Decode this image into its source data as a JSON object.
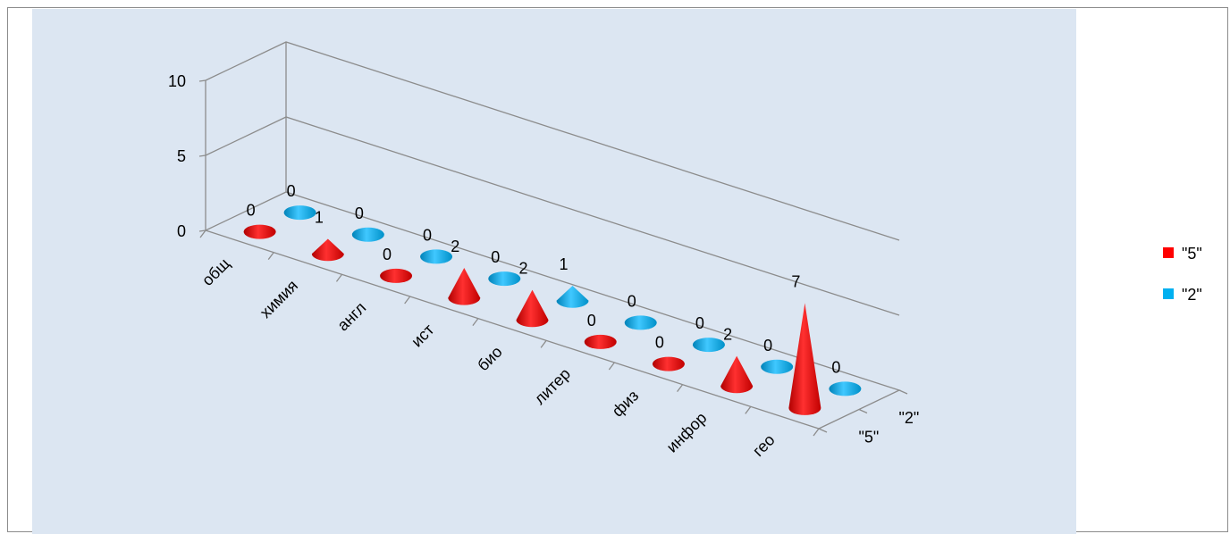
{
  "chart_data": {
    "type": "bar",
    "subtype": "3d-cone",
    "categories": [
      "общ",
      "химия",
      "англ",
      "ист",
      "био",
      "литер",
      "физ",
      "инфор",
      "гео"
    ],
    "series": [
      {
        "name": "\"5\"",
        "values": [
          0,
          1,
          0,
          2,
          2,
          0,
          0,
          2,
          7
        ],
        "color": "#ff0000"
      },
      {
        "name": "\"2\"",
        "values": [
          0,
          0,
          0,
          0,
          1,
          0,
          0,
          0,
          0
        ],
        "color": "#00b0f0"
      }
    ],
    "z_categories": [
      "\"5\"",
      "\"2\""
    ],
    "y_ticks": [
      "0",
      "5",
      "10"
    ],
    "ylim": [
      0,
      10
    ],
    "grid": true,
    "data_labels": true,
    "legend_position": "right",
    "plot_background": "#dce6f2"
  }
}
